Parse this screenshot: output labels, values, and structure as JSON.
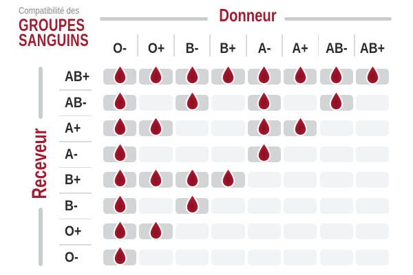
{
  "title": {
    "kicker": "Compatibilité des",
    "line1": "GROUPES",
    "line2": "SANGUINS"
  },
  "axes": {
    "donor_label": "Donneur",
    "receiver_label": "Receveur"
  },
  "colors": {
    "red": "#a6192e",
    "drop_center": "#8a0e22",
    "drop_mid": "#9f1529",
    "drop_edge": "#b51f37",
    "kicker_gray": "#8a8a8a",
    "label_dark": "#2b2b2b",
    "cell_compatible": "#d2d4d5",
    "cell_incompatible": "#f2f3f4",
    "axis_bar_gray": "#c9cdcd",
    "separator_gray": "#d8dadb"
  },
  "chart_data": {
    "type": "heatmap",
    "title": "Compatibilité des groupes sanguins",
    "x_axis_label": "Donneur",
    "y_axis_label": "Receveur",
    "donors": [
      "O-",
      "O+",
      "B-",
      "B+",
      "A-",
      "A+",
      "AB-",
      "AB+"
    ],
    "receivers": [
      "AB+",
      "AB-",
      "A+",
      "A-",
      "B+",
      "B-",
      "O+",
      "O-"
    ],
    "marker": "blood-drop = compatible, empty = incompatible",
    "compatible": [
      [
        1,
        1,
        1,
        1,
        1,
        1,
        1,
        1
      ],
      [
        1,
        0,
        1,
        0,
        1,
        0,
        1,
        0
      ],
      [
        1,
        1,
        0,
        0,
        1,
        1,
        0,
        0
      ],
      [
        1,
        0,
        0,
        0,
        1,
        0,
        0,
        0
      ],
      [
        1,
        1,
        1,
        1,
        0,
        0,
        0,
        0
      ],
      [
        1,
        0,
        1,
        0,
        0,
        0,
        0,
        0
      ],
      [
        1,
        1,
        0,
        0,
        0,
        0,
        0,
        0
      ],
      [
        1,
        0,
        0,
        0,
        0,
        0,
        0,
        0
      ]
    ]
  }
}
